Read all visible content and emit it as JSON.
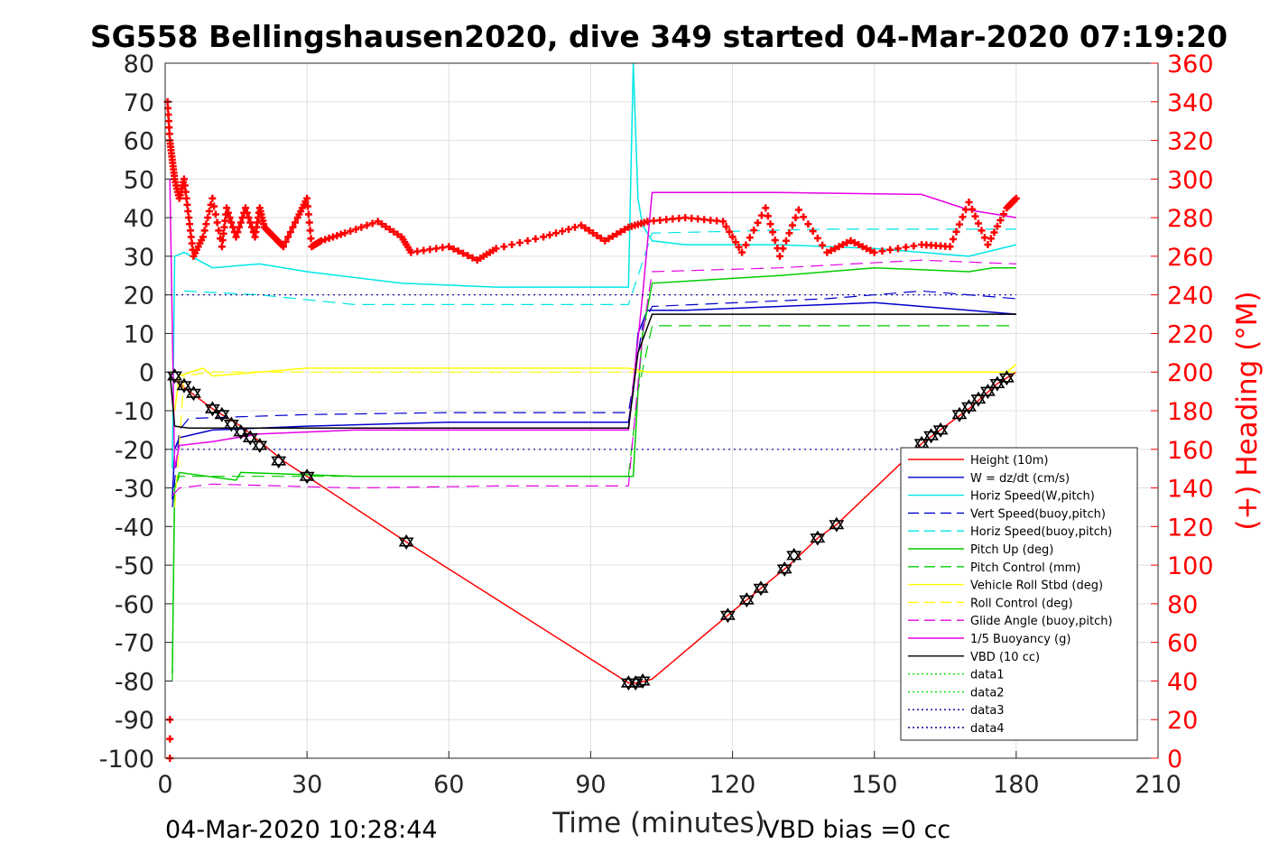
{
  "chart_data": {
    "type": "line",
    "title": "SG558 Bellingshausen2020, dive 349 started 04-Mar-2020 07:19:20",
    "xlabel": "Time (minutes)",
    "ylabel": "",
    "y2label": "(+) Heading (°M)",
    "xlim": [
      0,
      210
    ],
    "ylim": [
      -100,
      80
    ],
    "y2lim": [
      0,
      360
    ],
    "xticks": [
      "0",
      "30",
      "60",
      "90",
      "120",
      "150",
      "180",
      "210"
    ],
    "yticks": [
      "-100",
      "-90",
      "-80",
      "-70",
      "-60",
      "-50",
      "-40",
      "-30",
      "-20",
      "-10",
      "0",
      "10",
      "20",
      "30",
      "40",
      "50",
      "60",
      "70",
      "80"
    ],
    "y2ticks": [
      "0",
      "20",
      "40",
      "60",
      "80",
      "100",
      "120",
      "140",
      "160",
      "180",
      "200",
      "220",
      "240",
      "260",
      "280",
      "300",
      "320",
      "340",
      "360"
    ],
    "grid": true,
    "legend_position": "bottom-right",
    "footer_left": "04-Mar-2020 10:28:44",
    "footer_right": "VBD bias =0 cc",
    "series": [
      {
        "name": "Height (10m)",
        "color": "#ff0000",
        "style": "solid",
        "x": [
          1,
          4,
          10,
          16,
          20,
          25,
          30,
          51,
          98,
          100,
          103,
          119,
          123,
          126,
          132,
          138,
          142,
          160,
          165,
          170,
          176,
          180
        ],
        "y": [
          -1,
          -4,
          -9.5,
          -14,
          -18,
          -23,
          -27,
          -44,
          -80.5,
          -80.5,
          -79.5,
          -63,
          -59,
          -56,
          -50,
          -43,
          -39.5,
          -18.5,
          -14,
          -9.5,
          -3,
          0
        ]
      },
      {
        "name": "W = dz/dt (cm/s)",
        "color": "#0000cc",
        "style": "solid",
        "x": [
          1.5,
          2,
          3,
          10,
          30,
          60,
          90,
          98,
          99,
          100,
          102,
          110,
          130,
          150,
          160,
          170,
          180
        ],
        "y": [
          -33,
          -20,
          -17,
          -15,
          -14,
          -13,
          -13,
          -13,
          -5,
          10,
          16,
          16,
          17,
          18,
          17,
          16,
          15
        ]
      },
      {
        "name": "Horiz Speed(W,pitch)",
        "color": "#00e6e6",
        "style": "solid",
        "x": [
          1.5,
          2,
          4,
          10,
          20,
          30,
          50,
          70,
          90,
          98,
          99,
          100,
          101,
          103,
          110,
          130,
          150,
          170,
          180
        ],
        "y": [
          -25,
          30,
          31,
          27,
          28,
          26,
          23,
          22,
          22,
          22,
          80,
          45,
          38,
          34,
          33,
          33,
          32,
          30,
          33
        ]
      },
      {
        "name": "Vert Speed(buoy,pitch)",
        "color": "#0000cc",
        "style": "dashed",
        "x": [
          1.5,
          3,
          5,
          30,
          60,
          98,
          101,
          103,
          140,
          160,
          180
        ],
        "y": [
          -35,
          -15,
          -12,
          -11,
          -10.5,
          -10.5,
          12,
          17,
          19,
          21,
          19
        ]
      },
      {
        "name": "Horiz Speed(buoy,pitch)",
        "color": "#00e6e6",
        "style": "dashed",
        "x": [
          4,
          20,
          40,
          98,
          103,
          140,
          180
        ],
        "y": [
          21,
          20,
          17.5,
          17.5,
          36,
          37,
          37
        ]
      },
      {
        "name": "Pitch Up (deg)",
        "color": "#00cc00",
        "style": "solid",
        "x": [
          1.5,
          2,
          3,
          15,
          16,
          40,
          98,
          99,
          100,
          101,
          103,
          130,
          150,
          170,
          175,
          180
        ],
        "y": [
          -78,
          -30,
          -26,
          -28,
          -26,
          -27,
          -27,
          -27,
          -5,
          10,
          23,
          25,
          27,
          26,
          27,
          27
        ]
      },
      {
        "name": "Pitch Control (mm)",
        "color": "#00cc00",
        "style": "dashed",
        "x": [
          1.5,
          2,
          3,
          50,
          98,
          100,
          103,
          130,
          160,
          180
        ],
        "y": [
          -80,
          -30,
          -27,
          -27,
          -27,
          -5,
          12,
          12,
          12,
          12
        ]
      },
      {
        "name": "Vehicle Roll Stbd (deg)",
        "color": "#ffff00",
        "style": "solid",
        "x": [
          2,
          3,
          8,
          10,
          20,
          30,
          40,
          60,
          80,
          98,
          102,
          110,
          130,
          160,
          178,
          180
        ],
        "y": [
          -10,
          -1,
          1,
          -1,
          0,
          1,
          1,
          1,
          1,
          1,
          0,
          0,
          0,
          0,
          0,
          2
        ]
      },
      {
        "name": "Roll Control (deg)",
        "color": "#ffff00",
        "style": "dashed",
        "x": [
          2,
          4,
          10,
          30,
          60,
          98,
          103,
          130,
          160,
          180
        ],
        "y": [
          -35,
          -1,
          0,
          0,
          0,
          0,
          0,
          0,
          0,
          0
        ]
      },
      {
        "name": "Glide Angle (buoy,pitch)",
        "color": "#e600e6",
        "style": "dashed",
        "x": [
          1.5,
          3,
          10,
          40,
          70,
          98,
          101,
          103,
          130,
          160,
          180
        ],
        "y": [
          -32,
          -30,
          -29,
          -30,
          -29.5,
          -29.5,
          10,
          26,
          27,
          29,
          28
        ]
      },
      {
        "name": "1/5 Buoyancy (g)",
        "color": "#e600e6",
        "style": "solid",
        "x": [
          1,
          2,
          3,
          10,
          20,
          40,
          98,
          101,
          103,
          130,
          160,
          170,
          180
        ],
        "y": [
          50,
          -25,
          -19,
          -18,
          -16,
          -15,
          -15,
          20,
          46.5,
          46.5,
          46,
          42,
          40
        ]
      },
      {
        "name": "VBD (10 cc)",
        "color": "#000000",
        "style": "solid",
        "x": [
          1,
          2,
          5,
          20,
          60,
          98,
          100,
          103,
          140,
          175,
          180
        ],
        "y": [
          0,
          -14,
          -14.5,
          -14.5,
          -14.5,
          -14.5,
          5,
          15,
          15,
          15,
          15
        ]
      },
      {
        "name": "data1",
        "color": "#00e600",
        "style": "dotted",
        "x": [],
        "y": []
      },
      {
        "name": "data2",
        "color": "#00e600",
        "style": "dotted",
        "x": [],
        "y": []
      },
      {
        "name": "data3",
        "color": "#000099",
        "style": "dotted",
        "x": [
          0,
          180
        ],
        "y": [
          20,
          20
        ]
      },
      {
        "name": "data4",
        "color": "#000099",
        "style": "dotted",
        "x": [
          0,
          180
        ],
        "y": [
          -20,
          -20
        ]
      }
    ],
    "heading": {
      "color": "#ff0000",
      "axis": "right",
      "x": [
        0.5,
        1,
        1.5,
        2,
        3,
        4,
        5,
        6,
        8,
        10,
        12,
        13,
        15,
        17,
        19,
        20,
        21,
        23,
        25,
        28,
        30,
        31,
        33,
        38,
        45,
        50,
        52,
        60,
        66,
        70,
        80,
        88,
        93,
        98,
        102,
        110,
        118,
        122,
        127,
        130,
        134,
        140,
        145,
        150,
        160,
        166,
        170,
        174,
        178,
        180
      ],
      "y": [
        340,
        320,
        310,
        300,
        290,
        300,
        280,
        260,
        270,
        290,
        265,
        285,
        270,
        285,
        270,
        285,
        275,
        270,
        265,
        280,
        290,
        265,
        268,
        272,
        278,
        270,
        262,
        265,
        258,
        264,
        270,
        276,
        268,
        275,
        278,
        280,
        278,
        262,
        285,
        260,
        284,
        262,
        268,
        262,
        266,
        265,
        288,
        266,
        285,
        290
      ]
    },
    "heading_outliers": {
      "x": [
        1,
        1,
        1
      ],
      "y": [
        10,
        20,
        0
      ]
    },
    "markers": {
      "x": [
        2,
        4,
        6,
        10,
        12,
        14,
        16,
        18,
        20,
        24,
        30,
        51,
        98,
        99.5,
        101,
        119,
        123,
        126,
        131,
        133,
        138,
        142,
        160,
        162,
        164,
        168,
        170,
        172,
        174,
        176,
        178
      ],
      "y": [
        -1,
        -3.5,
        -5.5,
        -9.5,
        -11,
        -13.5,
        -15.5,
        -17,
        -19,
        -23,
        -27,
        -44,
        -80.5,
        -80.5,
        -80,
        -63,
        -59,
        -56,
        -51,
        -47.5,
        -43,
        -39.5,
        -18.5,
        -16.5,
        -15,
        -11,
        -9,
        -7,
        -5,
        -3,
        -1.5
      ]
    }
  }
}
